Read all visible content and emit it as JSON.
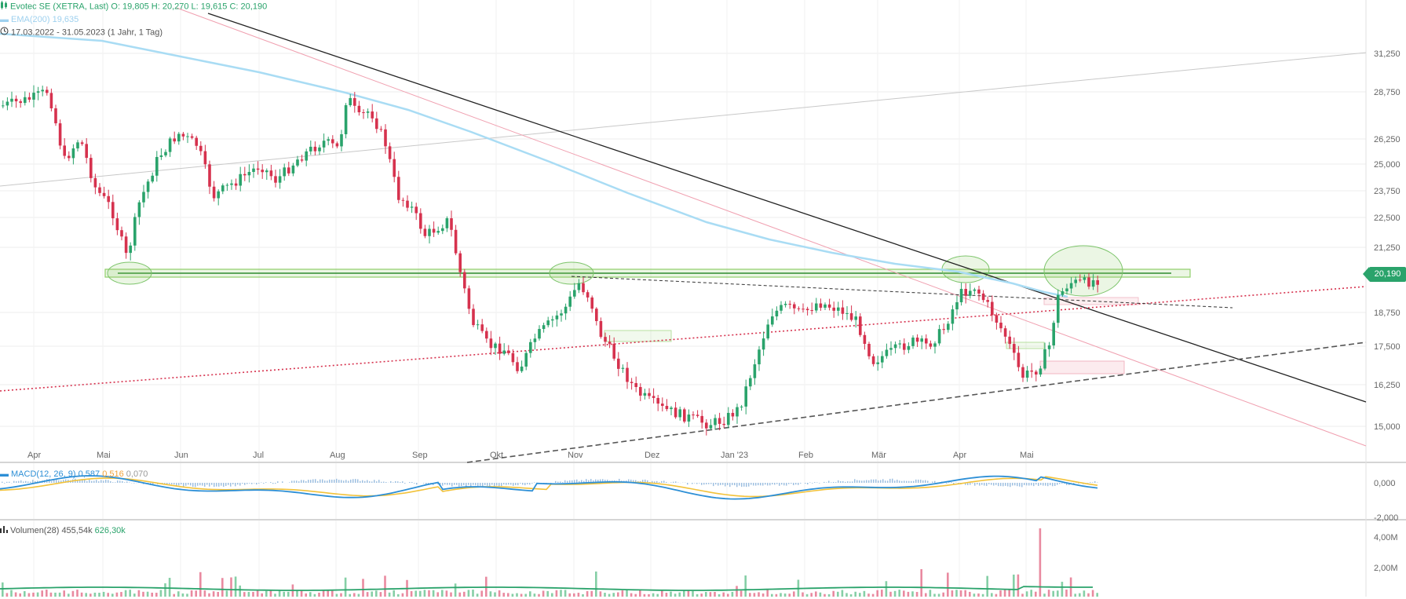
{
  "header": {
    "symbol": "Evotec SE (XETRA, Last)",
    "open": "O: 19,805",
    "high": "H: 20,270",
    "low": "L: 19,615",
    "close": "C: 20,190",
    "ema_label": "EMA(200)",
    "ema_value": "19,635",
    "range": "17.03.2022 - 31.05.2023",
    "range_note": "(1 Jahr, 1 Tag)"
  },
  "price_axis": {
    "ticks": [
      "31,250",
      "28,750",
      "26,250",
      "25,000",
      "23,750",
      "22,500",
      "21,250",
      "18,750",
      "17,500",
      "16,250",
      "15,000"
    ],
    "last_price": "20,190"
  },
  "time_axis": {
    "labels": [
      "Apr",
      "Mai",
      "Jun",
      "Jul",
      "Aug",
      "Sep",
      "Okt",
      "Nov",
      "Dez",
      "Jan '23",
      "Feb",
      "Mär",
      "Apr",
      "Mai"
    ]
  },
  "macd": {
    "label": "MACD(12, 26, 9)",
    "macd": "0,587",
    "signal": "0,516",
    "hist": "0,070",
    "ticks": [
      "0,000",
      "-2,000"
    ]
  },
  "volume": {
    "label": "Volumen(28)",
    "avg": "455,54k",
    "last": "626,30k",
    "ticks": [
      "4,00M",
      "2,00M"
    ]
  },
  "colors": {
    "up": "#2aa36b",
    "down": "#d6324e",
    "ema": "#a9dcf4",
    "macd": "#2d8fd6",
    "signal": "#f2c23a",
    "zone": "#8fce6a"
  },
  "chart_data": {
    "type": "candlestick",
    "title": "Evotec SE (XETRA, Last)",
    "period": "17.03.2022 - 31.05.2023",
    "ohlc_last": {
      "open": 19.805,
      "high": 20.27,
      "low": 19.615,
      "close": 20.19
    },
    "ema200_last": 19.635,
    "monthly_close_approx": [
      {
        "month": "Apr",
        "value": 28.1
      },
      {
        "month": "Mai",
        "value": 21.8
      },
      {
        "month": "Jun",
        "value": 26.0
      },
      {
        "month": "Jul",
        "value": 25.0
      },
      {
        "month": "Aug",
        "value": 27.5
      },
      {
        "month": "Sep",
        "value": 21.0
      },
      {
        "month": "Okt",
        "value": 17.8
      },
      {
        "month": "Nov",
        "value": 19.6
      },
      {
        "month": "Dez",
        "value": 15.8
      },
      {
        "month": "Jan '23",
        "value": 16.5
      },
      {
        "month": "Feb",
        "value": 19.0
      },
      {
        "month": "Mär",
        "value": 17.6
      },
      {
        "month": "Apr",
        "value": 18.6
      },
      {
        "month": "Mai",
        "value": 20.19
      }
    ],
    "ylim": [
      14.2,
      32.2
    ],
    "macd": {
      "macd": 0.587,
      "signal": 0.516,
      "histogram": 0.07
    },
    "volume": {
      "avg28": "455,54k",
      "last": "626,30k",
      "max_tick": "4,00M"
    }
  }
}
